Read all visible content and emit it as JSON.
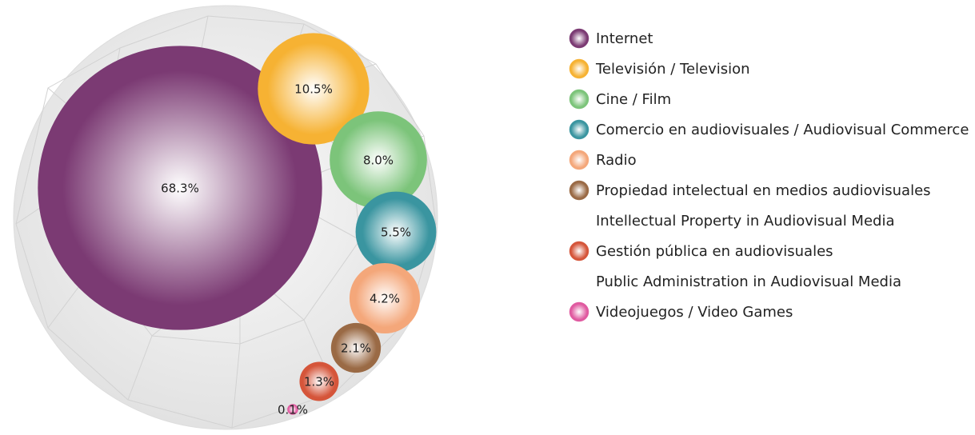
{
  "chart_data": {
    "type": "bubble",
    "categories": [
      "Internet",
      "Televisión / Television",
      "Cine / Film",
      "Comercio en audiovisuales / Audiovisual Commerce",
      "Radio",
      [
        "Propiedad intelectual en medios audiovisuales",
        "Intellectual Property in Audiovisual Media"
      ],
      [
        "Gestión pública en audiovisuales",
        "Public Administration in Audiovisual Media"
      ],
      "Videojuegos / Video Games"
    ],
    "values": [
      68.3,
      10.5,
      8.0,
      5.5,
      4.2,
      2.1,
      1.3,
      0.1
    ],
    "value_labels": [
      "68.3%",
      "10.5%",
      "8.0%",
      "5.5%",
      "4.2%",
      "2.1%",
      "1.3%",
      "0.1%"
    ],
    "colors": [
      "#7b3a73",
      "#f6b233",
      "#7cc47a",
      "#3a95a0",
      "#f4a77a",
      "#9a6a45",
      "#d5553a",
      "#e05aa0"
    ]
  }
}
